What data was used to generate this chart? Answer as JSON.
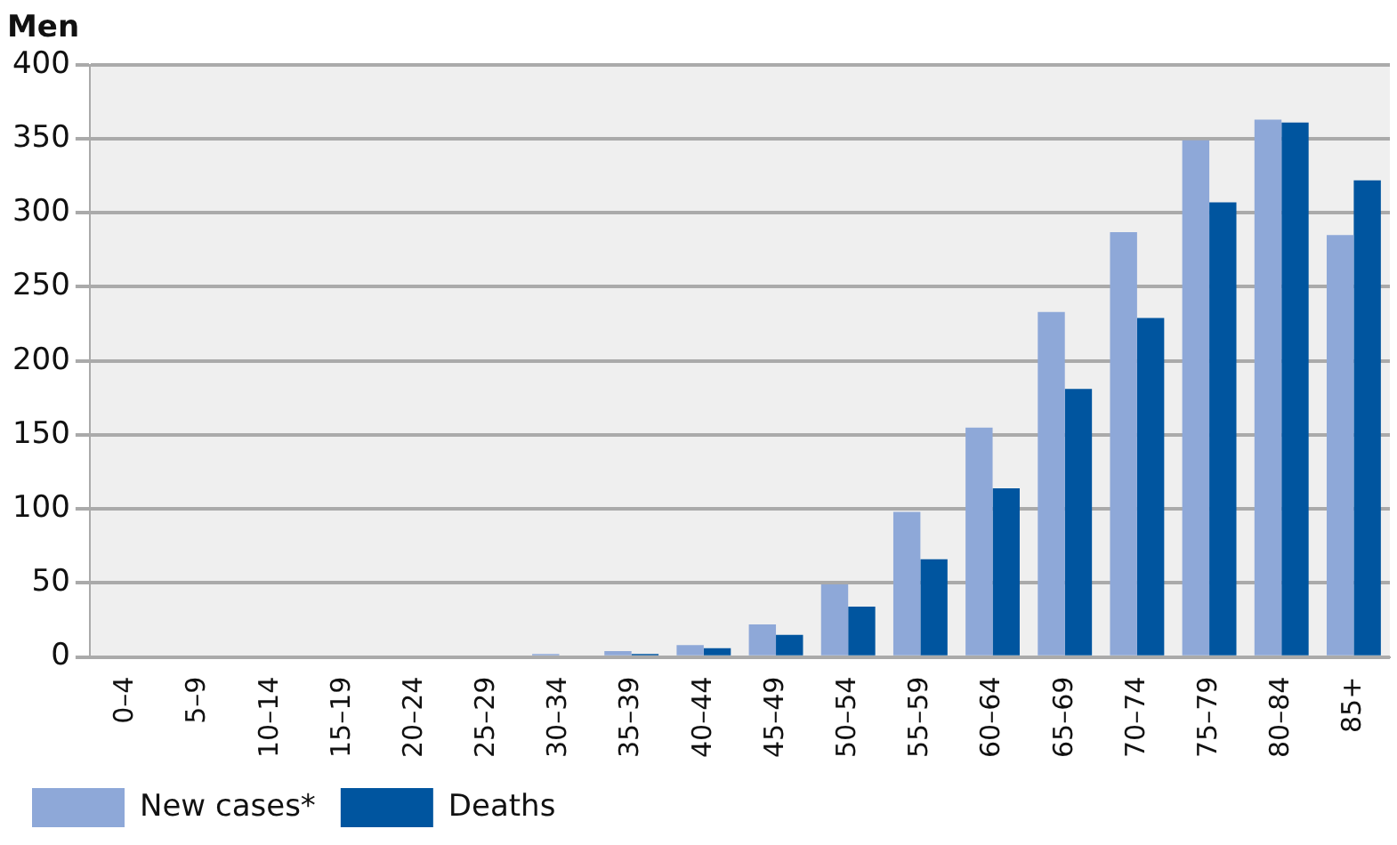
{
  "chart_data": {
    "type": "bar",
    "title": "Men",
    "categories": [
      "0–4",
      "5–9",
      "10–14",
      "15–19",
      "20–24",
      "25–29",
      "30–34",
      "35–39",
      "40–44",
      "45–49",
      "50–54",
      "55–59",
      "60–64",
      "65–69",
      "70–74",
      "75–79",
      "80–84",
      "85+"
    ],
    "series": [
      {
        "name": "New cases*",
        "color": "#8ea8d8",
        "values": [
          0,
          0,
          0,
          0,
          0,
          0,
          2,
          4,
          8,
          22,
          49,
          98,
          155,
          233,
          287,
          349,
          363,
          285
        ]
      },
      {
        "name": "Deaths",
        "color": "#00559f",
        "values": [
          0,
          0,
          0,
          0,
          0,
          0,
          0,
          2,
          6,
          15,
          34,
          66,
          114,
          181,
          229,
          307,
          361,
          322
        ]
      }
    ],
    "ylim": [
      0,
      400
    ],
    "yticks": [
      0,
      50,
      100,
      150,
      200,
      250,
      300,
      350,
      400
    ],
    "grid": "y",
    "legend": "bottom left"
  }
}
